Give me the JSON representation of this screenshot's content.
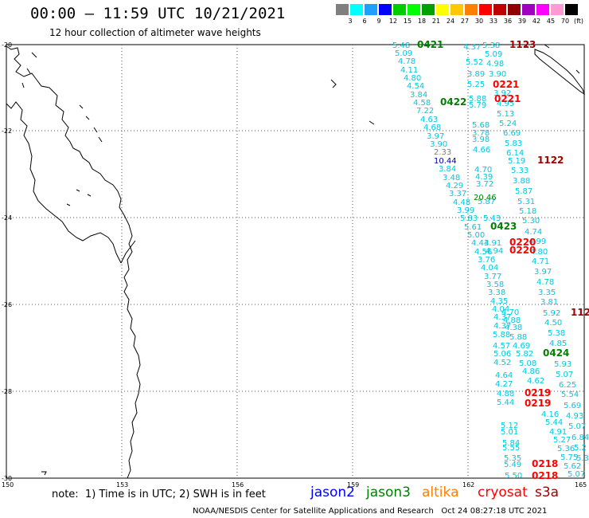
{
  "title": "00:00 – 11:59 UTC 10/21/2021",
  "subtitle": "12 hour collection of altimeter wave heights",
  "legend": {
    "unit": "(ft)",
    "bins": [
      {
        "label": "3",
        "color": "#7f7f7f"
      },
      {
        "label": "6",
        "color": "#00ffff"
      },
      {
        "label": "9",
        "color": "#1fa0ff"
      },
      {
        "label": "12",
        "color": "#0000ff"
      },
      {
        "label": "15",
        "color": "#00cc00"
      },
      {
        "label": "18",
        "color": "#00ff00"
      },
      {
        "label": "21",
        "color": "#00a000"
      },
      {
        "label": "24",
        "color": "#ffff00"
      },
      {
        "label": "27",
        "color": "#ffc800"
      },
      {
        "label": "30",
        "color": "#ff8000"
      },
      {
        "label": "33",
        "color": "#ff0000"
      },
      {
        "label": "36",
        "color": "#c00000"
      },
      {
        "label": "39",
        "color": "#900000"
      },
      {
        "label": "42",
        "color": "#a000c0"
      },
      {
        "label": "45",
        "color": "#ff00ff"
      },
      {
        "label": "70",
        "color": "#ff9ad5"
      },
      {
        "label": "(ft)",
        "color": "#000000"
      }
    ]
  },
  "axes": {
    "lat_labels": [
      "-20",
      "-22",
      "-24",
      "-26",
      "-28",
      "-30"
    ],
    "lon_labels": [
      "150",
      "153",
      "156",
      "159",
      "162",
      "165"
    ]
  },
  "colors": {
    "cyan": "#00c8e0",
    "gray": "#7f7f7f",
    "navy": "#0000a0",
    "jason2": "#0000ff",
    "jason3": "#008000",
    "altika": "#ff8000",
    "cryosat": "#ff0000",
    "s3a": "#a00000"
  },
  "note": "note:  1) Time is in UTC; 2) SWH is in feet",
  "missions": [
    {
      "name": "jason2",
      "color": "#0000ff"
    },
    {
      "name": "jason3",
      "color": "#008000"
    },
    {
      "name": "altika",
      "color": "#ff8000"
    },
    {
      "name": "cryosat",
      "color": "#ff0000"
    },
    {
      "name": "s3a",
      "color": "#a00000"
    }
  ],
  "footer": "NOAA/NESDIS Center for Satellite Applications and Research   Oct 24 08:27:18 UTC 2021",
  "time_labels": [
    {
      "t": "0421",
      "c": "#008000"
    },
    {
      "t": "1123",
      "c": "#a00000"
    },
    {
      "t": "0221",
      "c": "#ff0000"
    },
    {
      "t": "0221",
      "c": "#ff0000"
    },
    {
      "t": "0422",
      "c": "#008000"
    },
    {
      "t": "1122",
      "c": "#a00000"
    },
    {
      "t": "0423",
      "c": "#008000"
    },
    {
      "t": "0220",
      "c": "#ff0000"
    },
    {
      "t": "0220",
      "c": "#ff0000"
    },
    {
      "t": "112",
      "c": "#a00000"
    },
    {
      "t": "0424",
      "c": "#008000"
    },
    {
      "t": "0219",
      "c": "#ff0000"
    },
    {
      "t": "0219",
      "c": "#ff0000"
    },
    {
      "t": "0218",
      "c": "#ff0000"
    },
    {
      "t": "0218",
      "c": "#ff0000"
    }
  ],
  "wave_values": [
    {
      "t": "5.48",
      "c": "#00c8e0"
    },
    {
      "t": "5.09",
      "c": "#00c8e0"
    },
    {
      "t": "4.78",
      "c": "#00c8e0"
    },
    {
      "t": "4.11",
      "c": "#00c8e0"
    },
    {
      "t": "4.80",
      "c": "#00c8e0"
    },
    {
      "t": "4.54",
      "c": "#00c8e0"
    },
    {
      "t": "3.84",
      "c": "#00c8e0"
    },
    {
      "t": "4.58",
      "c": "#00c8e0"
    },
    {
      "t": "7.22",
      "c": "#00c8e0"
    },
    {
      "t": "4.63",
      "c": "#00c8e0"
    },
    {
      "t": "4.68",
      "c": "#00c8e0"
    },
    {
      "t": "3.97",
      "c": "#00c8e0"
    },
    {
      "t": "3.90",
      "c": "#00c8e0"
    },
    {
      "t": "2.33",
      "c": "#7f7f7f"
    },
    {
      "t": "10.44",
      "c": "#0000a0"
    },
    {
      "t": "3.84",
      "c": "#00c8e0"
    },
    {
      "t": "3.48",
      "c": "#00c8e0"
    },
    {
      "t": "4.29",
      "c": "#00c8e0"
    },
    {
      "t": "3.37",
      "c": "#00c8e0"
    },
    {
      "t": "4.48",
      "c": "#00c8e0"
    },
    {
      "t": "3.99",
      "c": "#00c8e0"
    },
    {
      "t": "5.83",
      "c": "#00c8e0"
    },
    {
      "t": "5.61",
      "c": "#00c8e0"
    },
    {
      "t": "5.00",
      "c": "#00c8e0"
    },
    {
      "t": "4.43",
      "c": "#00c8e0"
    },
    {
      "t": "4.56",
      "c": "#00c8e0"
    },
    {
      "t": "3.76",
      "c": "#00c8e0"
    },
    {
      "t": "4.04",
      "c": "#00c8e0"
    },
    {
      "t": "3.77",
      "c": "#00c8e0"
    },
    {
      "t": "3.58",
      "c": "#00c8e0"
    },
    {
      "t": "3.38",
      "c": "#00c8e0"
    },
    {
      "t": "4.35",
      "c": "#00c8e0"
    },
    {
      "t": "4.04",
      "c": "#00c8e0"
    },
    {
      "t": "4.37",
      "c": "#00c8e0"
    },
    {
      "t": "4.37",
      "c": "#00c8e0"
    },
    {
      "t": "5.88",
      "c": "#00c8e0"
    },
    {
      "t": "4.57",
      "c": "#00c8e0"
    },
    {
      "t": "5.06",
      "c": "#00c8e0"
    },
    {
      "t": "4.52",
      "c": "#00c8e0"
    },
    {
      "t": "4.64",
      "c": "#00c8e0"
    },
    {
      "t": "4.27",
      "c": "#00c8e0"
    },
    {
      "t": "4.88",
      "c": "#00c8e0"
    },
    {
      "t": "5.44",
      "c": "#00c8e0"
    },
    {
      "t": "5.12",
      "c": "#00c8e0"
    },
    {
      "t": "5.01",
      "c": "#00c8e0"
    },
    {
      "t": "5.84",
      "c": "#00c8e0"
    },
    {
      "t": "5.55",
      "c": "#00c8e0"
    },
    {
      "t": "5.35",
      "c": "#00c8e0"
    },
    {
      "t": "5.49",
      "c": "#00c8e0"
    },
    {
      "t": "5.50",
      "c": "#00c8e0"
    },
    {
      "t": "4.37",
      "c": "#00c8e0"
    },
    {
      "t": "5.38",
      "c": "#00c8e0"
    },
    {
      "t": "5.09",
      "c": "#00c8e0"
    },
    {
      "t": "5.52",
      "c": "#00c8e0"
    },
    {
      "t": "4.98",
      "c": "#00c8e0"
    },
    {
      "t": "3.89",
      "c": "#00c8e0"
    },
    {
      "t": "3.90",
      "c": "#00c8e0"
    },
    {
      "t": "5.25",
      "c": "#00c8e0"
    },
    {
      "t": "5.88",
      "c": "#00c8e0"
    },
    {
      "t": "3.92",
      "c": "#00c8e0"
    },
    {
      "t": "5.79",
      "c": "#00c8e0"
    },
    {
      "t": "4.95",
      "c": "#00c8e0"
    },
    {
      "t": "5.13",
      "c": "#00c8e0"
    },
    {
      "t": "5.68",
      "c": "#00c8e0"
    },
    {
      "t": "5.24",
      "c": "#00c8e0"
    },
    {
      "t": "3.78",
      "c": "#00c8e0"
    },
    {
      "t": "6.69",
      "c": "#00c8e0"
    },
    {
      "t": "3.98",
      "c": "#00c8e0"
    },
    {
      "t": "5.83",
      "c": "#00c8e0"
    },
    {
      "t": "4.66",
      "c": "#00c8e0"
    },
    {
      "t": "6.14",
      "c": "#00c8e0"
    },
    {
      "t": "5.19",
      "c": "#00c8e0"
    },
    {
      "t": "4.70",
      "c": "#00c8e0"
    },
    {
      "t": "5.33",
      "c": "#00c8e0"
    },
    {
      "t": "4.39",
      "c": "#00c8e0"
    },
    {
      "t": "3.88",
      "c": "#00c8e0"
    },
    {
      "t": "3.72",
      "c": "#00c8e0"
    },
    {
      "t": "5.87",
      "c": "#00c8e0"
    },
    {
      "t": "20.46",
      "c": "#008000"
    },
    {
      "t": "5.87",
      "c": "#00c8e0"
    },
    {
      "t": "5.31",
      "c": "#00c8e0"
    },
    {
      "t": "5.18",
      "c": "#00c8e0"
    },
    {
      "t": "5.43",
      "c": "#00c8e0"
    },
    {
      "t": "5.30",
      "c": "#00c8e0"
    },
    {
      "t": "4.74",
      "c": "#00c8e0"
    },
    {
      "t": "4.91",
      "c": "#00c8e0"
    },
    {
      "t": "4.99",
      "c": "#00c8e0"
    },
    {
      "t": "4.94",
      "c": "#00c8e0"
    },
    {
      "t": "4.80",
      "c": "#00c8e0"
    },
    {
      "t": "4.71",
      "c": "#00c8e0"
    },
    {
      "t": "3.97",
      "c": "#00c8e0"
    },
    {
      "t": "4.78",
      "c": "#00c8e0"
    },
    {
      "t": "3.35",
      "c": "#00c8e0"
    },
    {
      "t": "3.81",
      "c": "#00c8e0"
    },
    {
      "t": "5.92",
      "c": "#00c8e0"
    },
    {
      "t": "4.70",
      "c": "#00c8e0"
    },
    {
      "t": "4.50",
      "c": "#00c8e0"
    },
    {
      "t": "4.88",
      "c": "#00c8e0"
    },
    {
      "t": "5.38",
      "c": "#00c8e0"
    },
    {
      "t": "4.38",
      "c": "#00c8e0"
    },
    {
      "t": "4.85",
      "c": "#00c8e0"
    },
    {
      "t": "5.88",
      "c": "#00c8e0"
    },
    {
      "t": "4.69",
      "c": "#00c8e0"
    },
    {
      "t": "5.82",
      "c": "#00c8e0"
    },
    {
      "t": "5.93",
      "c": "#00c8e0"
    },
    {
      "t": "5.08",
      "c": "#00c8e0"
    },
    {
      "t": "5.07",
      "c": "#00c8e0"
    },
    {
      "t": "4.86",
      "c": "#00c8e0"
    },
    {
      "t": "4.62",
      "c": "#00c8e0"
    },
    {
      "t": "6.25",
      "c": "#00c8e0"
    },
    {
      "t": "5.54",
      "c": "#00c8e0"
    },
    {
      "t": "5.69",
      "c": "#00c8e0"
    },
    {
      "t": "4.16",
      "c": "#00c8e0"
    },
    {
      "t": "4.93",
      "c": "#00c8e0"
    },
    {
      "t": "5.44",
      "c": "#00c8e0"
    },
    {
      "t": "5.07",
      "c": "#00c8e0"
    },
    {
      "t": "4.91",
      "c": "#00c8e0"
    },
    {
      "t": "6.84",
      "c": "#00c8e0"
    },
    {
      "t": "5.27",
      "c": "#00c8e0"
    },
    {
      "t": "5.36",
      "c": "#00c8e0"
    },
    {
      "t": "5.2",
      "c": "#00c8e0"
    },
    {
      "t": "5.75",
      "c": "#00c8e0"
    },
    {
      "t": "5.3",
      "c": "#00c8e0"
    },
    {
      "t": "5.62",
      "c": "#00c8e0"
    },
    {
      "t": "5.07",
      "c": "#00c8e0"
    }
  ]
}
